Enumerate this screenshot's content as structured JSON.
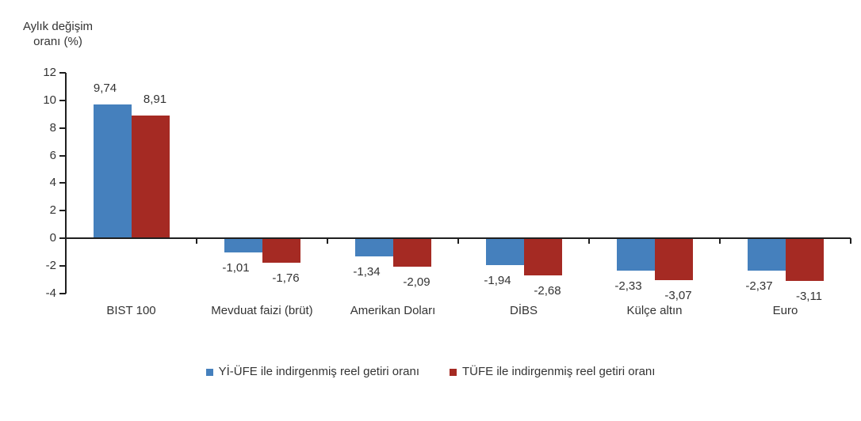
{
  "chart_data": {
    "type": "bar",
    "title": "",
    "ylabel": "Aylık değişim oranı (%)",
    "ylabel_lines": [
      "Aylık değişim",
      "oranı (%)"
    ],
    "xlabel": "",
    "categories": [
      "BIST 100",
      "Mevduat faizi (brüt)",
      "Amerikan Doları",
      "DİBS",
      "Külçe altın",
      "Euro"
    ],
    "series": [
      {
        "name": "Yİ-ÜFE ile indirgenmiş reel getiri oranı",
        "color": "#4580BD",
        "values": [
          9.74,
          -1.01,
          -1.34,
          -1.94,
          -2.33,
          -2.37
        ]
      },
      {
        "name": "TÜFE ile indirgenmiş reel getiri oranı",
        "color": "#A52A23",
        "values": [
          8.91,
          -1.76,
          -2.09,
          -2.68,
          -3.07,
          -3.11
        ]
      }
    ],
    "value_label_format": "decimal-comma-2",
    "ylim": [
      -4,
      12
    ],
    "ytick_step": 2,
    "yticks": [
      "12",
      "10",
      "8",
      "6",
      "4",
      "2",
      "0",
      "-2",
      "-4"
    ],
    "grid": false,
    "legend_position": "bottom",
    "axis_color": "#1f1f1f",
    "text_color": "#333333"
  }
}
